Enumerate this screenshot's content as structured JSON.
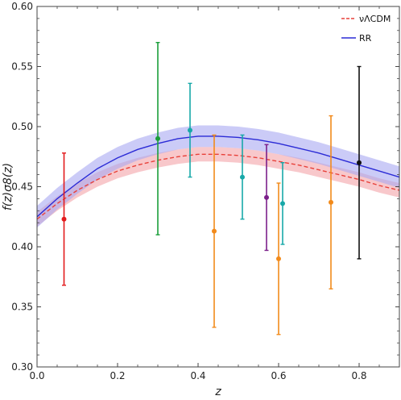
{
  "chart_data": {
    "type": "scatter",
    "xlabel": "z",
    "ylabel": "f(z)σ8(z)",
    "xlim": [
      0.0,
      0.9
    ],
    "ylim": [
      0.3,
      0.6
    ],
    "xticks": [
      "0.0",
      "0.2",
      "0.4",
      "0.6",
      "0.8"
    ],
    "xtick_values": [
      0.0,
      0.2,
      0.4,
      0.6,
      0.8
    ],
    "yticks": [
      "0.30",
      "0.35",
      "0.40",
      "0.45",
      "0.50",
      "0.55",
      "0.60"
    ],
    "ytick_values": [
      0.3,
      0.35,
      0.4,
      0.45,
      0.5,
      0.55,
      0.6
    ],
    "grid": false,
    "legend_position": "top-right",
    "legend": [
      {
        "label": "νΛCDM",
        "color": "#e8413a",
        "style": "dashed"
      },
      {
        "label": "RR",
        "color": "#2b2bd6",
        "style": "solid"
      }
    ],
    "curves": [
      {
        "name": "νΛCDM",
        "color": "#e8413a",
        "band_color": "#f4a3a8",
        "x": [
          0.0,
          0.05,
          0.1,
          0.15,
          0.2,
          0.25,
          0.3,
          0.35,
          0.4,
          0.45,
          0.5,
          0.55,
          0.6,
          0.65,
          0.7,
          0.75,
          0.8,
          0.85,
          0.9
        ],
        "y": [
          0.423,
          0.436,
          0.447,
          0.456,
          0.463,
          0.468,
          0.472,
          0.475,
          0.477,
          0.477,
          0.476,
          0.474,
          0.471,
          0.468,
          0.464,
          0.46,
          0.456,
          0.451,
          0.447
        ],
        "band": 0.006
      },
      {
        "name": "RR",
        "color": "#2b2bd6",
        "band_color": "#a9a9f2",
        "x": [
          0.0,
          0.05,
          0.1,
          0.15,
          0.2,
          0.25,
          0.3,
          0.35,
          0.4,
          0.45,
          0.5,
          0.55,
          0.6,
          0.65,
          0.7,
          0.75,
          0.8,
          0.85,
          0.9
        ],
        "y": [
          0.425,
          0.44,
          0.453,
          0.465,
          0.474,
          0.481,
          0.486,
          0.49,
          0.492,
          0.492,
          0.491,
          0.489,
          0.486,
          0.482,
          0.478,
          0.473,
          0.468,
          0.463,
          0.458
        ],
        "band": 0.009
      }
    ],
    "points": [
      {
        "x": 0.067,
        "y": 0.423,
        "err": 0.055,
        "color": "#e31a1c"
      },
      {
        "x": 0.3,
        "y": 0.49,
        "err": 0.08,
        "color": "#1a9e3a"
      },
      {
        "x": 0.38,
        "y": 0.497,
        "err": 0.039,
        "color": "#17a8a8"
      },
      {
        "x": 0.44,
        "y": 0.413,
        "err": 0.08,
        "color": "#f28a1a"
      },
      {
        "x": 0.51,
        "y": 0.458,
        "err": 0.035,
        "color": "#17a8a8"
      },
      {
        "x": 0.57,
        "y": 0.441,
        "err": 0.044,
        "color": "#7b1f8a"
      },
      {
        "x": 0.6,
        "y": 0.39,
        "err": 0.063,
        "color": "#f28a1a"
      },
      {
        "x": 0.61,
        "y": 0.436,
        "err": 0.034,
        "color": "#17a8a8"
      },
      {
        "x": 0.73,
        "y": 0.437,
        "err": 0.072,
        "color": "#f28a1a"
      },
      {
        "x": 0.8,
        "y": 0.47,
        "err": 0.08,
        "color": "#111111"
      }
    ]
  }
}
